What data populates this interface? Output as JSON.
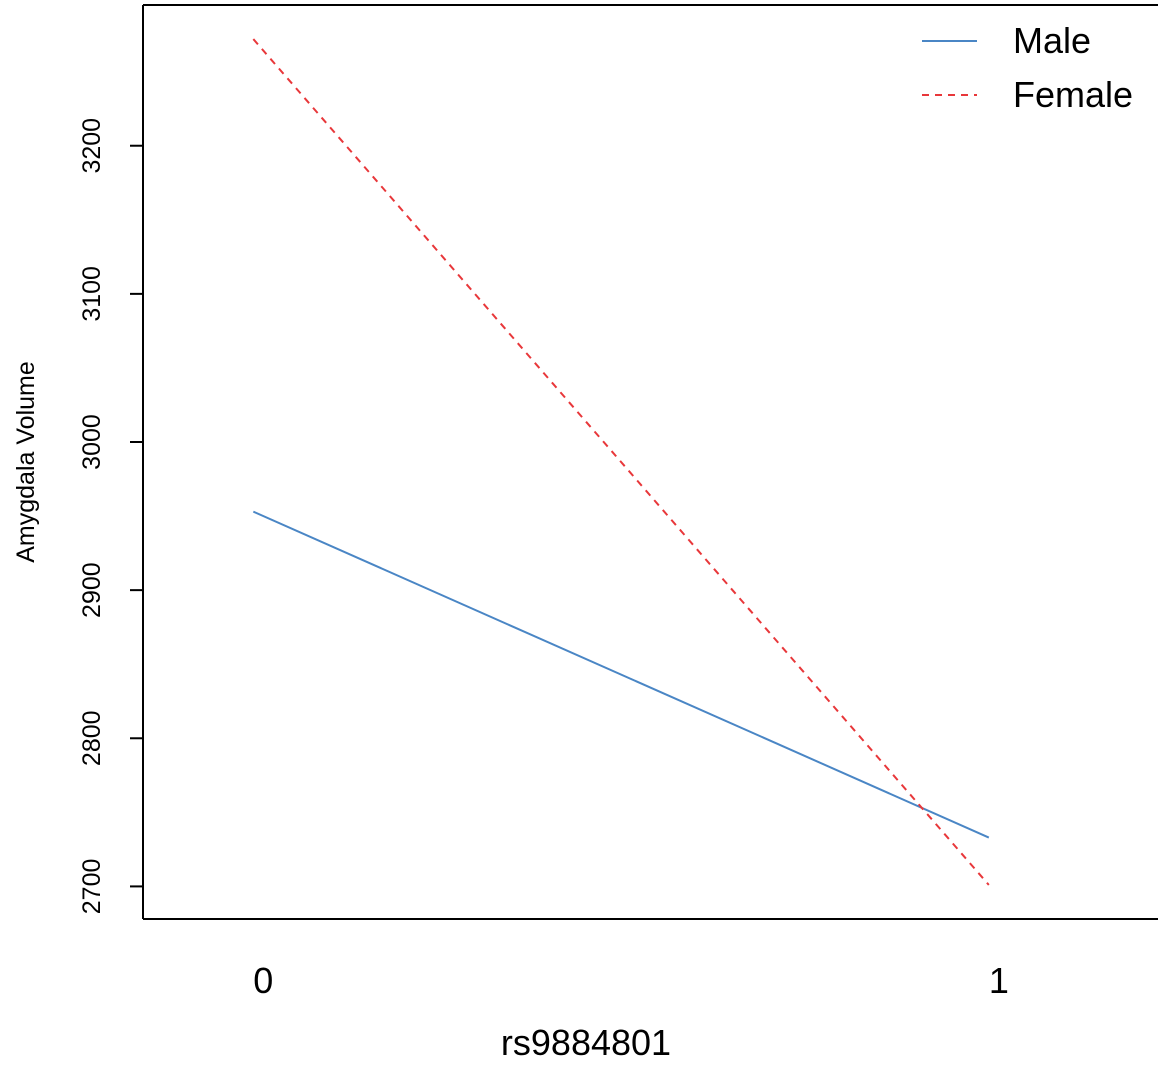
{
  "chart_data": {
    "type": "line",
    "xlabel": "rs9884801",
    "ylabel": "Amygdala Volume",
    "x": [
      0,
      1
    ],
    "x_tick_labels": [
      "0",
      "1"
    ],
    "xlim": [
      -0.15,
      1.23
    ],
    "ylim": [
      2678,
      3295
    ],
    "y_ticks": [
      2700,
      2800,
      2900,
      3000,
      3100,
      3200
    ],
    "y_tick_labels": [
      "2700",
      "2800",
      "2900",
      "3000",
      "3100",
      "3200"
    ],
    "series": [
      {
        "name": "Male",
        "values": [
          2953,
          2733
        ],
        "color": "#4a86c5",
        "style": "solid"
      },
      {
        "name": "Female",
        "values": [
          3272,
          2701
        ],
        "color": "#e8373a",
        "style": "dashed"
      }
    ],
    "legend": {
      "position": "top-right"
    },
    "grid": false
  }
}
